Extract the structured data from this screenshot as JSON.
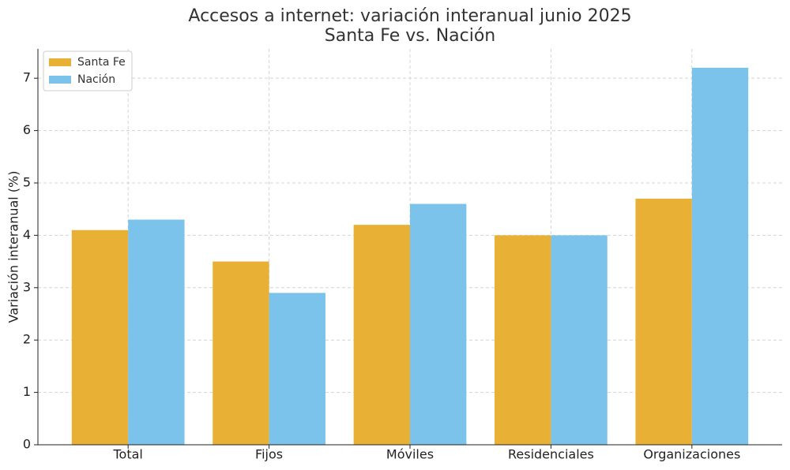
{
  "chart_data": {
    "type": "bar",
    "title": "Accesos a internet: variación interanual junio 2025",
    "subtitle": "Santa Fe vs. Nación",
    "y_label": "Variación interanual (%)",
    "categories": [
      "Total",
      "Fijos",
      "Móviles",
      "Residenciales",
      "Organizaciones"
    ],
    "series": [
      {
        "name": "Santa Fe",
        "color": "#e8b135",
        "values": [
          4.1,
          3.5,
          4.2,
          4.0,
          4.7
        ]
      },
      {
        "name": "Nación",
        "color": "#7bc3ea",
        "values": [
          4.3,
          2.9,
          4.6,
          4.0,
          7.2
        ]
      }
    ],
    "ylim": [
      0,
      7.56
    ],
    "yticks": [
      0,
      1,
      2,
      3,
      4,
      5,
      6,
      7
    ],
    "grid": true,
    "legend": "upper-left"
  }
}
